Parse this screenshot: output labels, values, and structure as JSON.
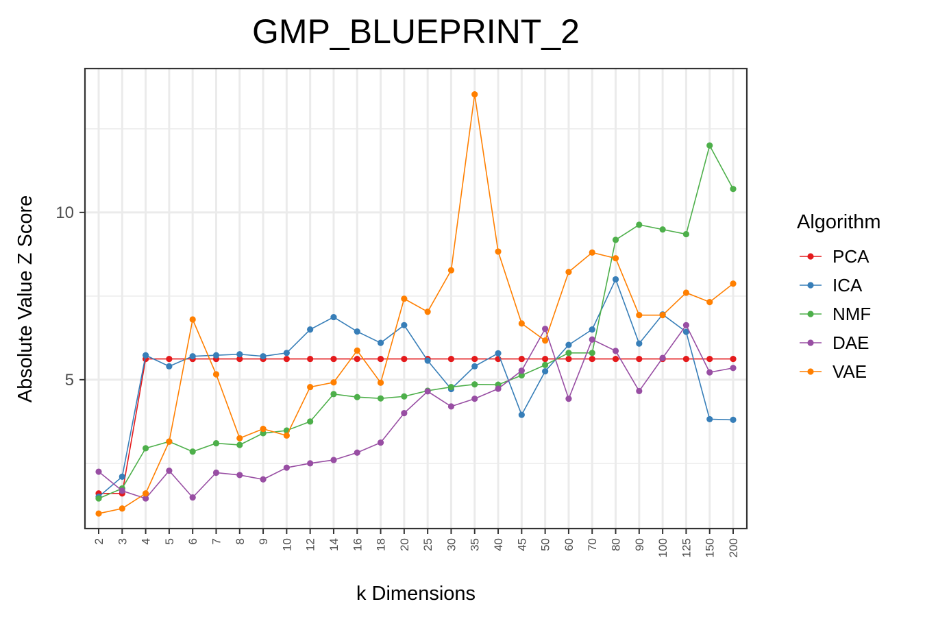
{
  "chart_data": {
    "type": "line",
    "title": "GMP_BLUEPRINT_2",
    "xlabel": "k Dimensions",
    "ylabel": "Absolute Value Z Score",
    "categories": [
      "2",
      "3",
      "4",
      "5",
      "6",
      "7",
      "8",
      "9",
      "10",
      "12",
      "14",
      "16",
      "18",
      "20",
      "25",
      "30",
      "35",
      "40",
      "45",
      "50",
      "60",
      "70",
      "80",
      "90",
      "100",
      "125",
      "150",
      "200"
    ],
    "ylim": [
      0.55,
      14.3
    ],
    "yticks": [
      5,
      10
    ],
    "y_minor_ticks": [
      2.5,
      7.5,
      12.5
    ],
    "grid": true,
    "legend": {
      "title": "Algorithm",
      "position": "right"
    },
    "series": [
      {
        "name": "PCA",
        "color": "#E41A1C",
        "values": [
          1.6,
          1.6,
          5.62,
          5.62,
          5.62,
          5.62,
          5.62,
          5.62,
          5.62,
          5.62,
          5.62,
          5.62,
          5.62,
          5.62,
          5.62,
          5.62,
          5.62,
          5.62,
          5.62,
          5.62,
          5.62,
          5.62,
          5.62,
          5.62,
          5.62,
          5.62,
          5.62,
          5.62
        ]
      },
      {
        "name": "ICA",
        "color": "#377EB8",
        "values": [
          1.5,
          2.1,
          5.73,
          5.4,
          5.7,
          5.73,
          5.76,
          5.7,
          5.8,
          6.5,
          6.87,
          6.44,
          6.1,
          6.63,
          5.57,
          4.72,
          5.4,
          5.79,
          3.95,
          5.25,
          6.04,
          6.5,
          8.0,
          6.08,
          6.95,
          6.43,
          3.82,
          3.8
        ]
      },
      {
        "name": "NMF",
        "color": "#4DAF4A",
        "values": [
          1.45,
          1.75,
          2.95,
          3.15,
          2.85,
          3.1,
          3.05,
          3.4,
          3.48,
          3.75,
          4.57,
          4.48,
          4.44,
          4.5,
          4.67,
          4.78,
          4.86,
          4.85,
          5.13,
          5.44,
          5.8,
          5.8,
          9.18,
          9.63,
          9.49,
          9.35,
          12.0,
          10.7
        ]
      },
      {
        "name": "DAE",
        "color": "#984EA3",
        "values": [
          2.25,
          1.68,
          1.45,
          2.28,
          1.48,
          2.22,
          2.15,
          2.02,
          2.37,
          2.5,
          2.6,
          2.82,
          3.12,
          4.0,
          4.65,
          4.2,
          4.43,
          4.73,
          5.27,
          6.52,
          4.43,
          6.2,
          5.86,
          4.66,
          5.65,
          6.63,
          5.22,
          5.35
        ]
      },
      {
        "name": "VAE",
        "color": "#FF7F00",
        "values": [
          1.0,
          1.15,
          1.6,
          3.15,
          6.8,
          5.16,
          3.25,
          3.53,
          3.33,
          4.78,
          4.92,
          5.87,
          4.91,
          7.42,
          7.03,
          8.27,
          13.53,
          8.83,
          6.68,
          6.17,
          8.22,
          8.8,
          8.63,
          6.93,
          6.93,
          7.6,
          7.32,
          7.87
        ]
      }
    ]
  }
}
